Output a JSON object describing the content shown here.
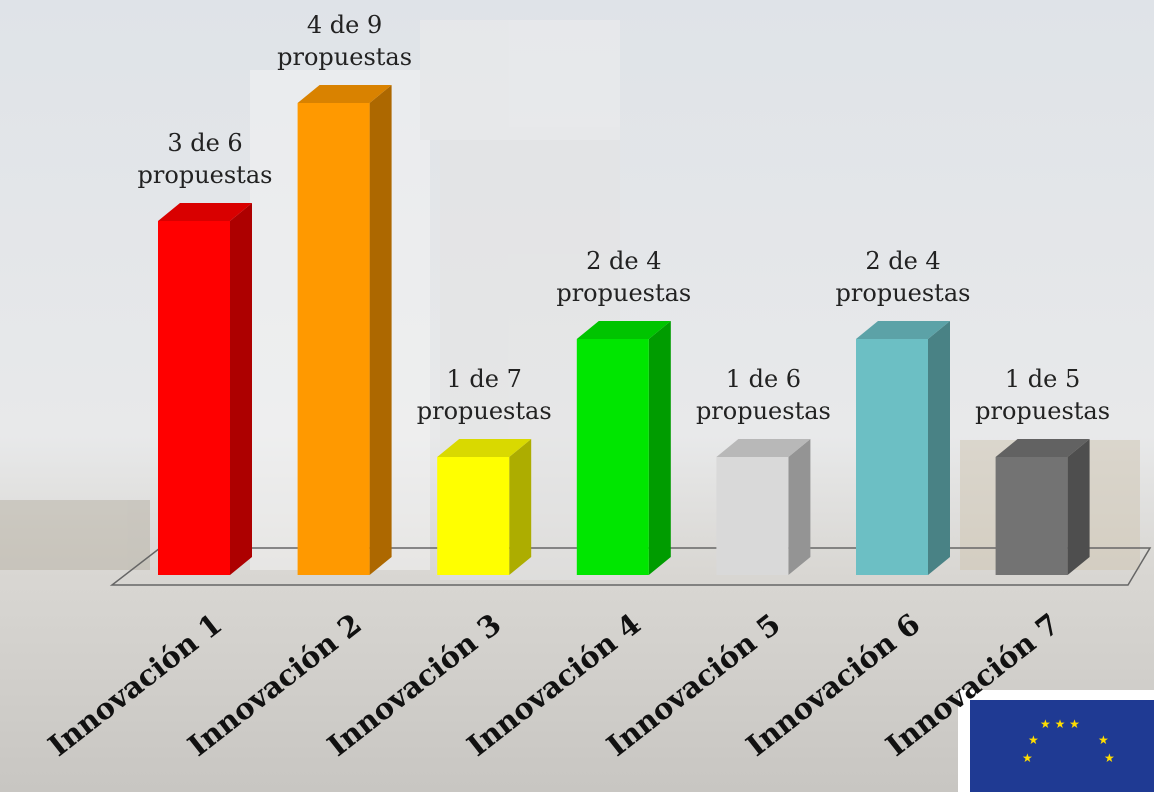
{
  "chart_data": {
    "type": "bar3d",
    "categories": [
      "Innovación 1",
      "Innovación 2",
      "Innovación 3",
      "Innovación 4",
      "Innovación 5",
      "Innovación 6",
      "Innovación 7"
    ],
    "values": [
      3,
      4,
      1,
      2,
      1,
      2,
      1
    ],
    "value_labels": [
      "3 de 6 propuestas",
      "4 de 9 propuestas",
      "1 de 7 propuestas",
      "2 de 4 propuestas",
      "1 de 6 propuestas",
      "2 de 4 propuestas",
      "1 de 5 propuestas"
    ],
    "colors": [
      "#ff0000",
      "#ff9900",
      "#ffff00",
      "#00e600",
      "#d9d9d9",
      "#6cbfc4",
      "#737373"
    ]
  }
}
